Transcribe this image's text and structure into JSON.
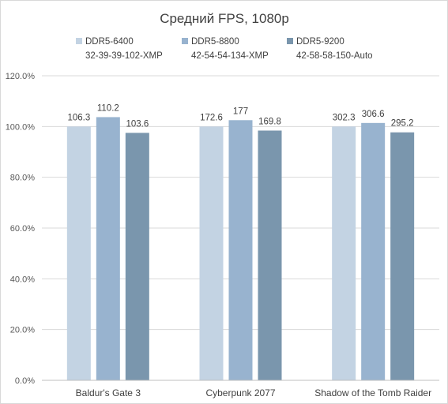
{
  "chart_data": {
    "type": "bar",
    "title": "Средний FPS, 1080p",
    "xlabel": "",
    "ylabel": "",
    "ylim": [
      0,
      120
    ],
    "yticks": [
      "0.0%",
      "20.0%",
      "40.0%",
      "60.0%",
      "80.0%",
      "100.0%",
      "120.0%"
    ],
    "grid": true,
    "legend_position": "top",
    "categories": [
      "Baldur's Gate 3",
      "Cyberpunk 2077",
      "Shadow of the Tomb Raider"
    ],
    "series": [
      {
        "name": "DDR5-6400",
        "subname": "32-39-39-102-XMP",
        "color": "#c3d3e3",
        "values_percent": [
          100.0,
          100.0,
          100.0
        ],
        "labels": [
          "106.3",
          "172.6",
          "302.3"
        ]
      },
      {
        "name": "DDR5-8800",
        "subname": "42-54-54-134-XMP",
        "color": "#98b3cf",
        "values_percent": [
          103.7,
          102.5,
          101.4
        ],
        "labels": [
          "110.2",
          "177",
          "306.6"
        ]
      },
      {
        "name": "DDR5-9200",
        "subname": "42-58-58-150-Auto",
        "color": "#7a96ad",
        "values_percent": [
          97.5,
          98.4,
          97.7
        ],
        "labels": [
          "103.6",
          "169.8",
          "295.2"
        ]
      }
    ]
  }
}
